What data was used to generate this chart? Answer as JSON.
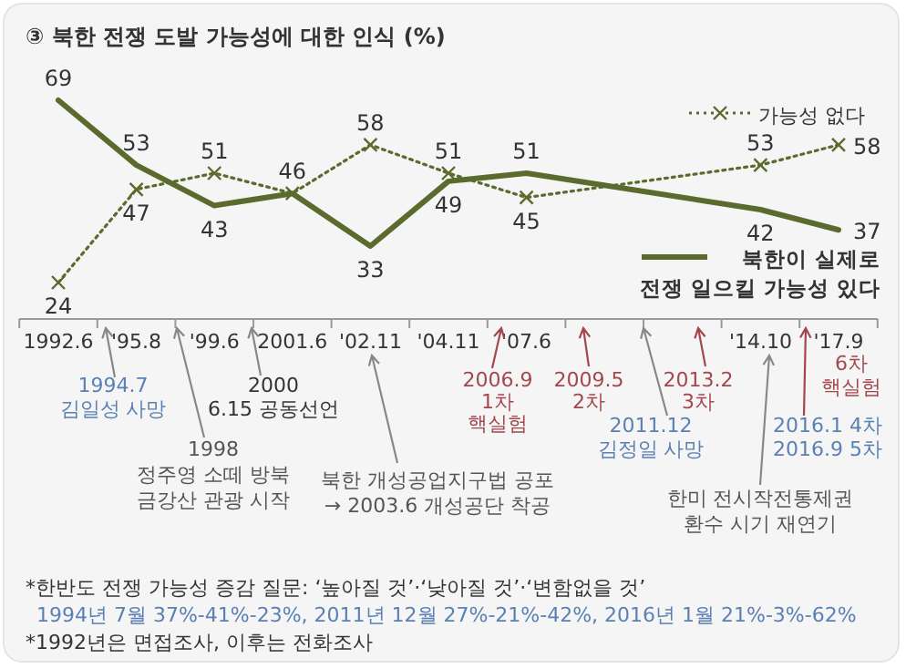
{
  "chart_data": {
    "type": "line",
    "title": "③ 북한 전쟁 도발 가능성에 대한 인식 (%)",
    "categories": [
      "1992.6",
      "'95.8",
      "'99.6",
      "2001.6",
      "'02.11",
      "'04.11",
      "'07.6",
      null,
      null,
      "'14.10",
      "'17.9"
    ],
    "series": [
      {
        "name": "북한이 실제로 전쟁 일으킬 가능성 있다",
        "color": "#5b6a2d",
        "values": [
          69,
          53,
          43,
          46,
          33,
          49,
          51,
          null,
          null,
          42,
          37
        ],
        "value_labels": [
          "69",
          "53",
          "43",
          "46",
          "33",
          "49",
          "51",
          null,
          null,
          "42",
          "37"
        ],
        "marker": "none",
        "line_style": "solid"
      },
      {
        "name": "가능성 없다",
        "color": "#5b6a2d",
        "values": [
          24,
          47,
          51,
          46,
          58,
          51,
          45,
          null,
          null,
          53,
          58
        ],
        "value_labels": [
          "24",
          "47",
          "51",
          null,
          "58",
          "51",
          "45",
          null,
          null,
          "53",
          "58"
        ],
        "marker": "cross",
        "line_style": "dotted"
      }
    ],
    "legend": "right",
    "annotations": [
      "1994.7\n김일성 사망",
      "1998\n정주영 소떼 방북\n금강산 관광 시작",
      "2000\n6.15 공동선언",
      "북한 개성공업지구법 공포\n→ 2003.6 개성공단 착공",
      "2006.9\n1차\n핵실험",
      "2009.5\n2차",
      "2011.12\n김정일 사망",
      "2013.2\n3차",
      "한미 전시작전통제권\n환수 시기 재연기",
      "6차\n핵실험",
      "2016.1 4차\n2016.9 5차",
      "*한반도 전쟁 가능성 증감 질문: ‘높아질 것’·‘낮아질 것’·‘변함없을 것’",
      "1994년 7월 37%-41%-23%, 2011년 12월 27%-21%-42%, 2016년 1월 21%-3%-62%",
      "*1992년은 면접조사, 이후는 전화조사"
    ]
  }
}
